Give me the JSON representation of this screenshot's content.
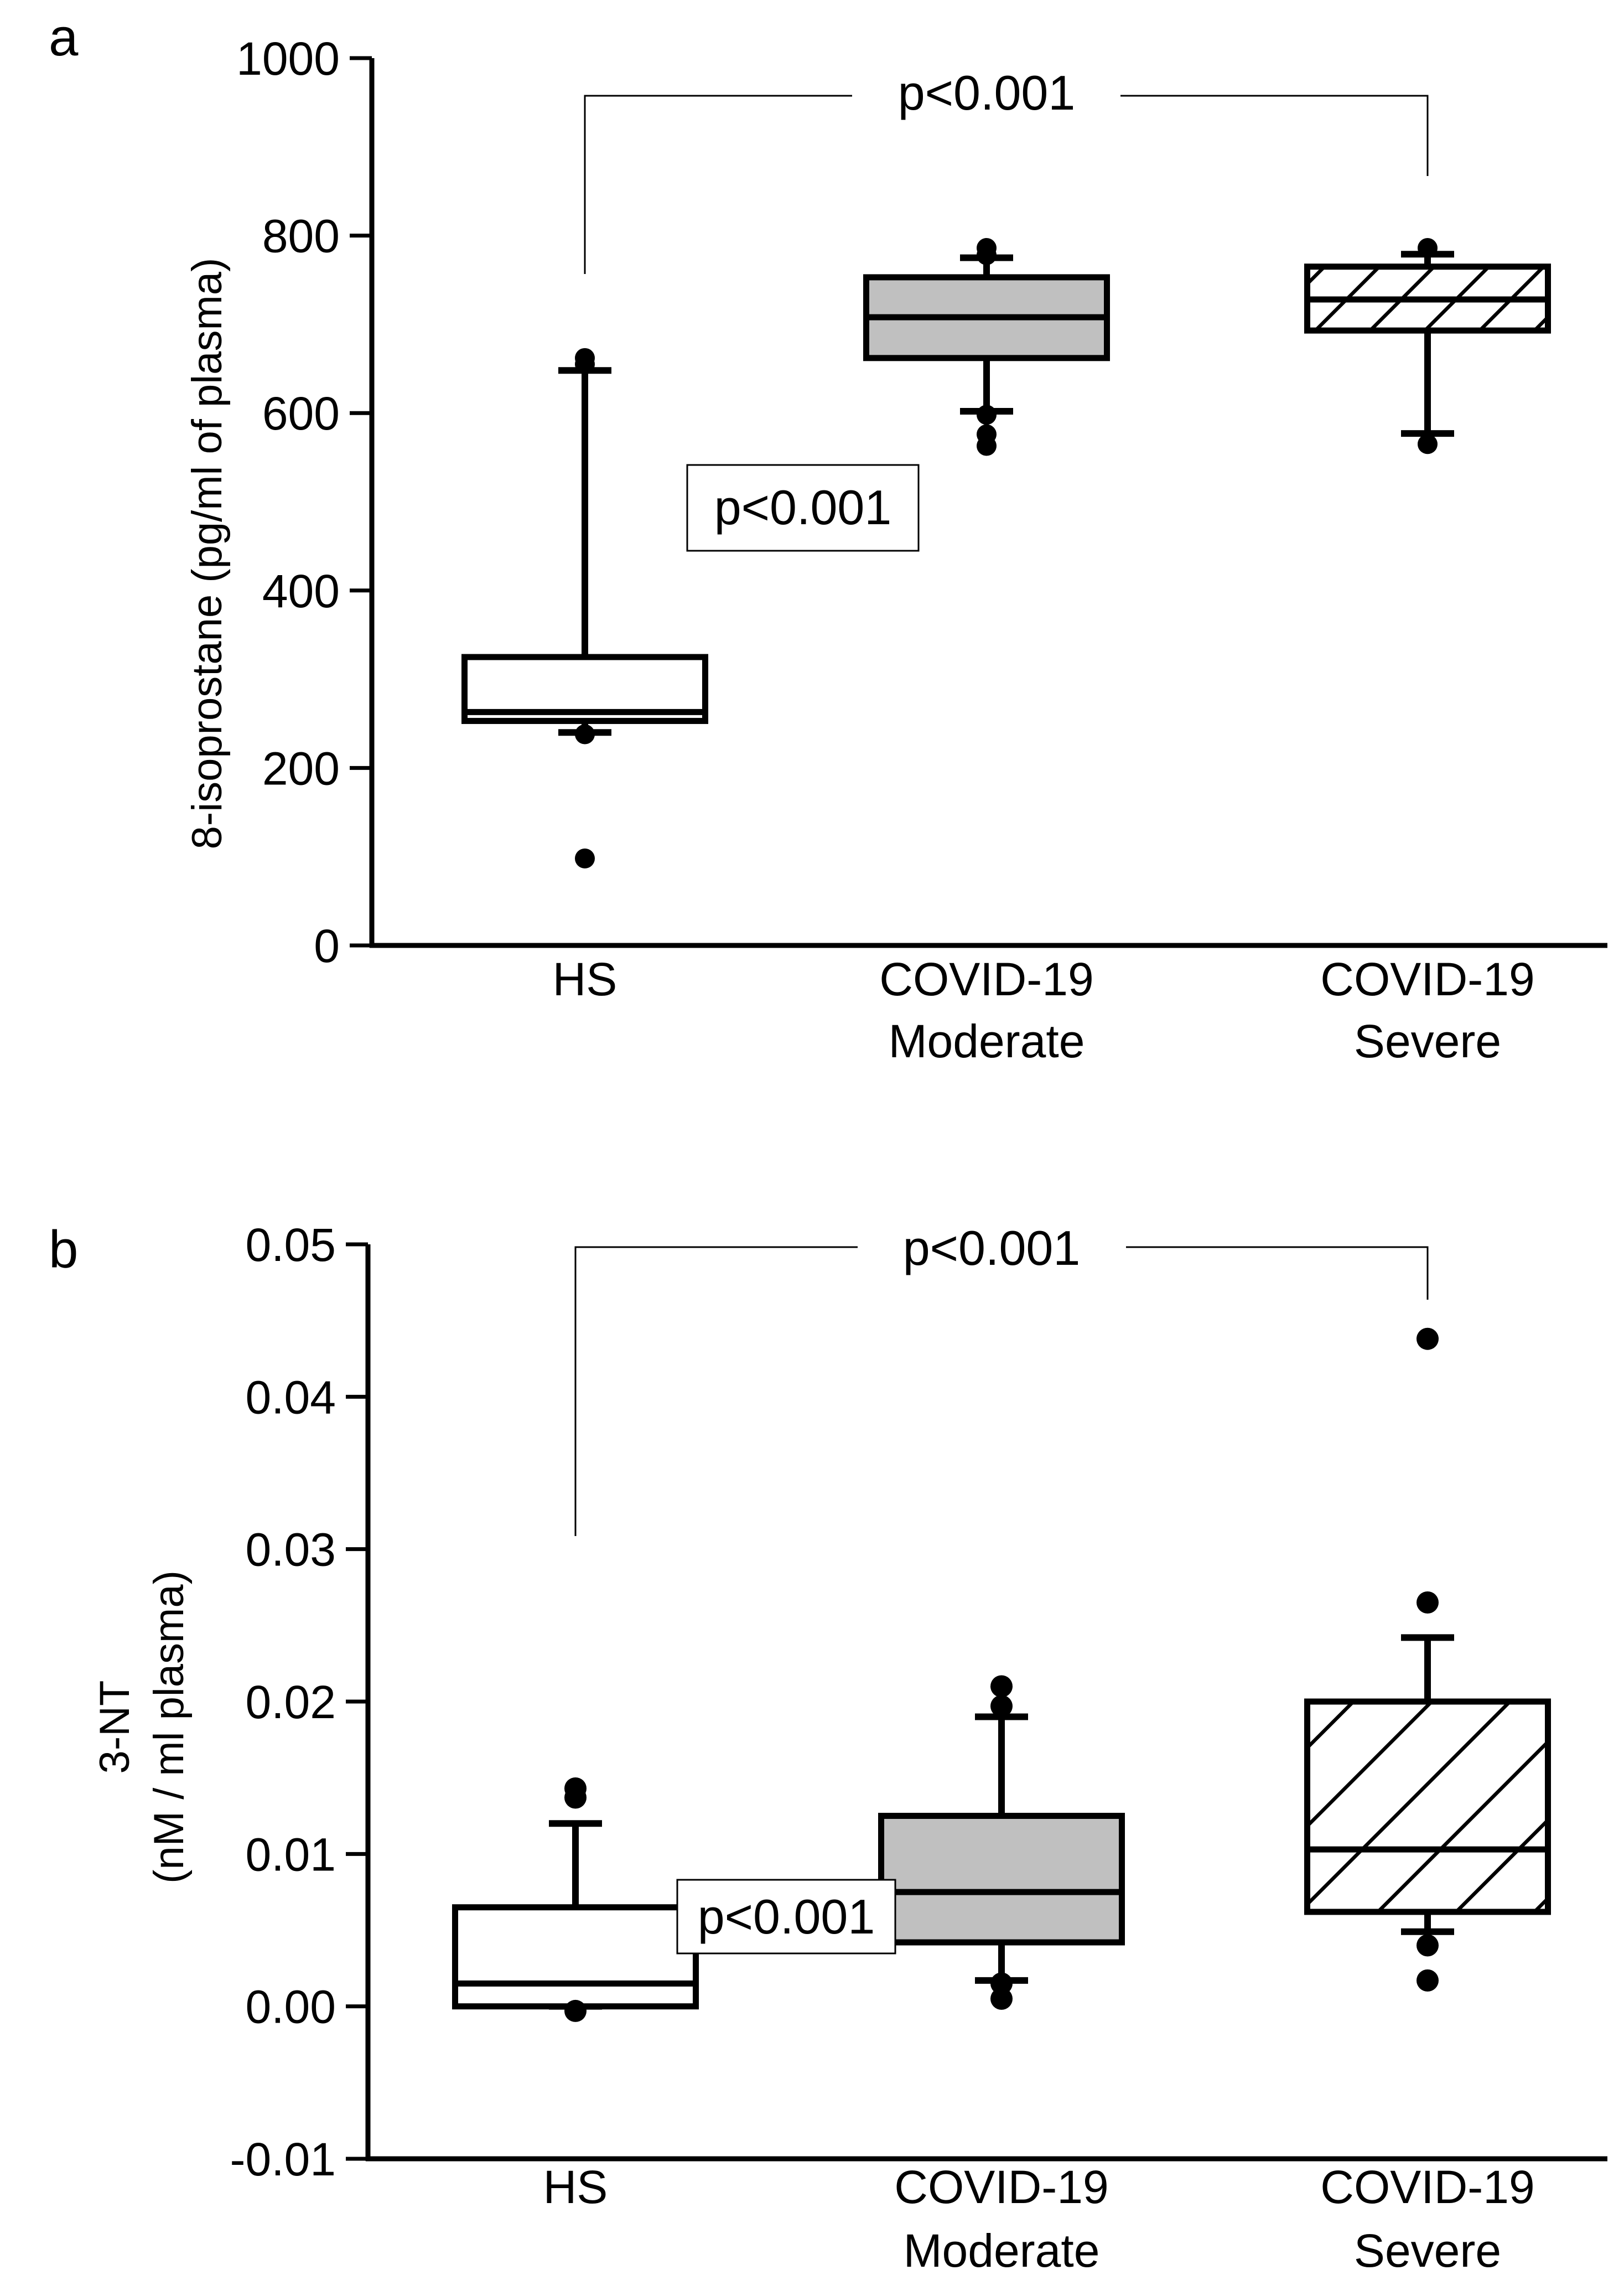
{
  "chart_data": [
    {
      "type": "box",
      "panel_label": "a",
      "ylabel": "8-isoprostane (pg/ml of plasma)",
      "ylabel_lines": [
        "8-isoprostane (pg/ml of plasma)"
      ],
      "ylim": [
        0,
        1000
      ],
      "yticks": [
        0,
        200,
        400,
        600,
        800,
        1000
      ],
      "ytick_labels": [
        "0",
        "200",
        "400",
        "600",
        "800",
        "1000"
      ],
      "categories": [
        [
          "HS"
        ],
        [
          "COVID-19",
          "Moderate"
        ],
        [
          "COVID-19",
          "Severe"
        ]
      ],
      "boxes": [
        {
          "pattern": "none",
          "fill": "#ffffff",
          "whisker_low": 240,
          "q1": 253,
          "median": 263,
          "q3": 325,
          "whisker_high": 648,
          "outliers": [
            98,
            238,
            655,
            662
          ]
        },
        {
          "pattern": "solid",
          "fill": "#c0c0c0",
          "whisker_low": 602,
          "q1": 662,
          "median": 708,
          "q3": 753,
          "whisker_high": 775,
          "outliers": [
            563,
            576,
            598,
            778,
            786
          ]
        },
        {
          "pattern": "hatch",
          "fill": "#ffffff",
          "whisker_low": 577,
          "q1": 693,
          "median": 728,
          "q3": 765,
          "whisker_high": 779,
          "outliers": [
            565,
            786
          ]
        }
      ],
      "annotations": [
        {
          "text": "p<0.001",
          "type": "bracket",
          "from": 0,
          "to": 2
        },
        {
          "text": "p<0.001",
          "type": "box"
        }
      ]
    },
    {
      "type": "box",
      "panel_label": "b",
      "ylabel": "3-NT (nM / ml plasma)",
      "ylabel_lines": [
        "3-NT",
        "(nM / ml plasma)"
      ],
      "ylim": [
        -0.01,
        0.05
      ],
      "yticks": [
        -0.01,
        0.0,
        0.01,
        0.02,
        0.03,
        0.04,
        0.05
      ],
      "ytick_labels": [
        "-0.01",
        "0.00",
        "0.01",
        "0.02",
        "0.03",
        "0.04",
        "0.05"
      ],
      "categories": [
        [
          "HS"
        ],
        [
          "COVID-19",
          "Moderate"
        ],
        [
          "COVID-19",
          "Severe"
        ]
      ],
      "boxes": [
        {
          "pattern": "none",
          "fill": "#ffffff",
          "whisker_low": 0.0,
          "q1": 0.0,
          "median": 0.0015,
          "q3": 0.0065,
          "whisker_high": 0.012,
          "outliers": [
            -0.0003,
            0.0137,
            0.0143
          ]
        },
        {
          "pattern": "solid",
          "fill": "#c0c0c0",
          "whisker_low": 0.0017,
          "q1": 0.0042,
          "median": 0.0075,
          "q3": 0.0125,
          "whisker_high": 0.019,
          "outliers": [
            0.0005,
            0.0015,
            0.0197,
            0.021
          ]
        },
        {
          "pattern": "hatch",
          "fill": "#ffffff",
          "whisker_low": 0.0049,
          "q1": 0.0062,
          "median": 0.0103,
          "q3": 0.02,
          "whisker_high": 0.0242,
          "outliers": [
            0.0017,
            0.004,
            0.0265,
            0.0438
          ]
        }
      ],
      "annotations": [
        {
          "text": "p<0.001",
          "type": "bracket",
          "from": 0,
          "to": 2
        },
        {
          "text": "p<0.001",
          "type": "box"
        }
      ]
    }
  ]
}
